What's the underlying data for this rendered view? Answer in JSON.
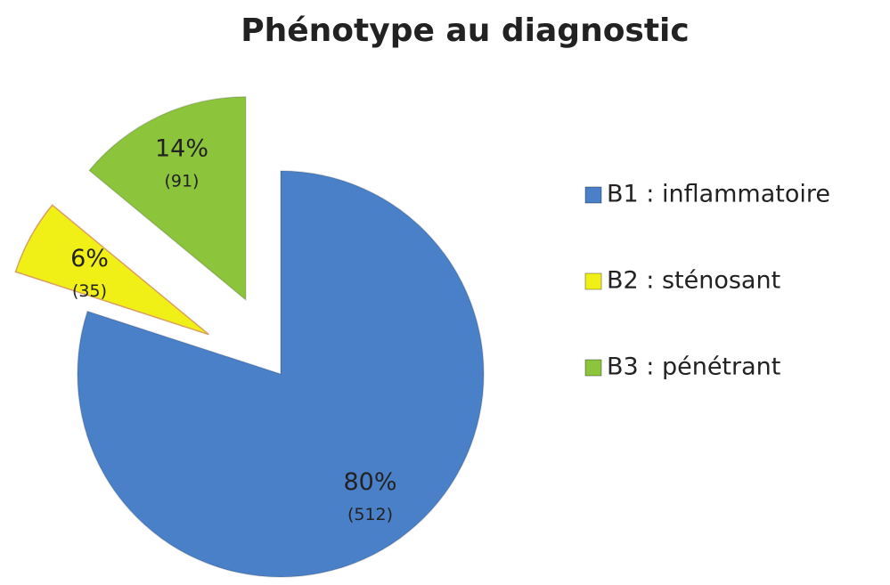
{
  "chart_data": {
    "type": "pie",
    "title": "Phénotype au diagnostic",
    "categories": [
      "B1 : inflammatoire",
      "B2 : sténosant",
      "B3 : pénétrant"
    ],
    "values": [
      80,
      6,
      14
    ],
    "value_labels": [
      "80%",
      "6%",
      "14%"
    ],
    "count_labels": [
      "(512)",
      "(35)",
      "(91)"
    ],
    "colors": [
      "#4a80c8",
      "#f0f016",
      "#8cc43c"
    ],
    "legend": "right"
  }
}
